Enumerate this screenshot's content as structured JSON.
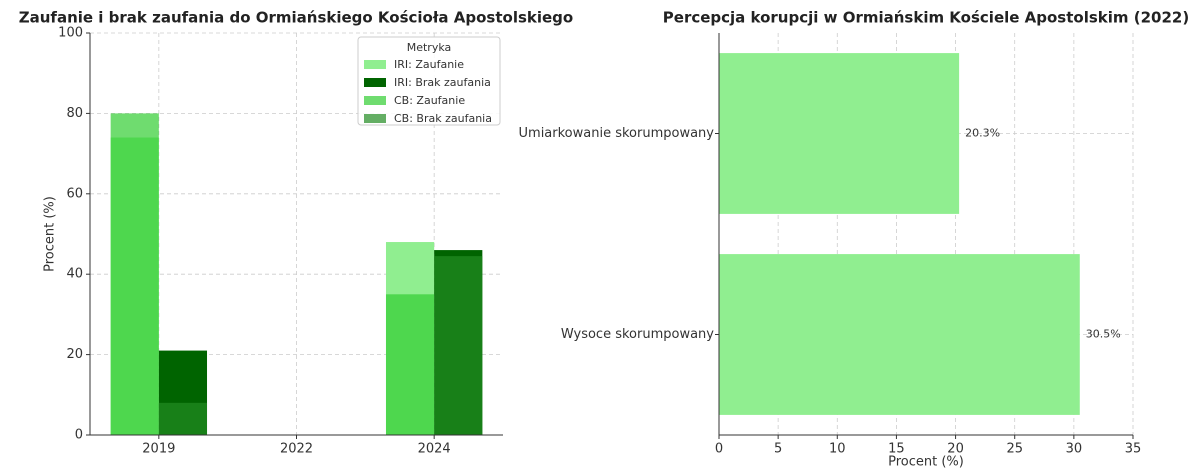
{
  "chart_data": [
    {
      "type": "bar",
      "title": "Zaufanie i brak zaufania do Ormiańskiego Kościoła Apostolskiego",
      "categories": [
        "2019",
        "2022",
        "2024"
      ],
      "ylabel": "Procent (%)",
      "ylim": [
        0,
        100
      ],
      "yticks": [
        0,
        20,
        40,
        60,
        80,
        100
      ],
      "grid": true,
      "legend_title": "Metryka",
      "legend": "upper right",
      "series": [
        {
          "name": "IRI: Zaufanie",
          "color": "#90ee90",
          "opacity": 1,
          "group": 0,
          "values": [
            74,
            null,
            48
          ]
        },
        {
          "name": "IRI: Brak zaufania",
          "color": "#006400",
          "opacity": 1,
          "group": 1,
          "values": [
            21,
            null,
            46
          ]
        },
        {
          "name": "CB: Zaufanie",
          "color": "#32cd32",
          "opacity": 0.7,
          "group": 0,
          "values": [
            80,
            null,
            35
          ]
        },
        {
          "name": "CB: Brak zaufania",
          "color": "#228b22",
          "opacity": 0.7,
          "group": 1,
          "values": [
            8,
            null,
            44.5
          ]
        }
      ]
    },
    {
      "type": "barh",
      "title": "Percepcja korupcji w Ormiańskim Kościele Apostolskim (2022)",
      "categories": [
        "Wysoce skorumpowany",
        "Umiarkowanie skorumpowany"
      ],
      "values": [
        30.5,
        20.3
      ],
      "value_labels": [
        "30.5%",
        "20.3%"
      ],
      "color": "#90ee90",
      "xlabel": "Procent (%)",
      "xlim": [
        0,
        35
      ],
      "xticks": [
        0,
        5,
        10,
        15,
        20,
        25,
        30,
        35
      ],
      "grid": true
    }
  ]
}
